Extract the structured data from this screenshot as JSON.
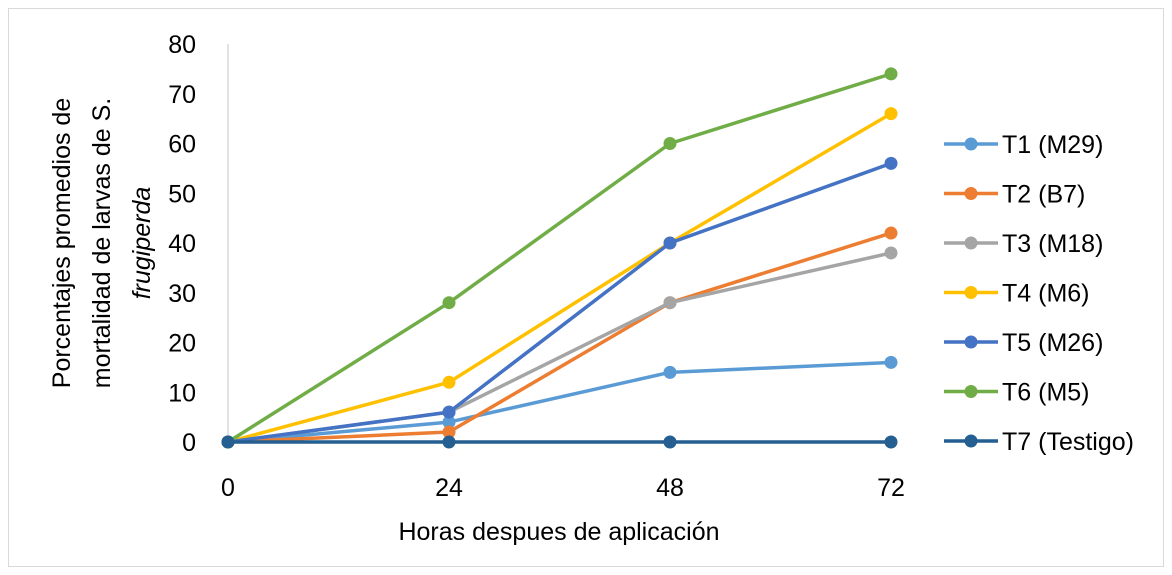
{
  "chart_data": {
    "type": "line",
    "x": [
      0,
      24,
      48,
      72
    ],
    "x_tick_labels": [
      "0",
      "24",
      "48",
      "72"
    ],
    "y_tick_labels": [
      "0",
      "10",
      "20",
      "30",
      "40",
      "50",
      "60",
      "70",
      "80"
    ],
    "ylim": [
      0,
      80
    ],
    "xlabel": "Horas despues de aplicación",
    "ylabel_lines": [
      "Porcentajes promedios de",
      "mortalidad de larvas de S.",
      "frugiperda"
    ],
    "ylabel": "Porcentajes promedios de mortalidad de larvas de S. frugiperda",
    "grid": false,
    "legend_position": "right",
    "series": [
      {
        "name": "T1 (M29)",
        "color": "#5B9BD5",
        "values": [
          0,
          4,
          14,
          16
        ]
      },
      {
        "name": "T2 (B7)",
        "color": "#ED7D31",
        "values": [
          0,
          2,
          28,
          42
        ]
      },
      {
        "name": "T3 (M18)",
        "color": "#A5A5A5",
        "values": [
          0,
          6,
          28,
          38
        ]
      },
      {
        "name": "T4 (M6)",
        "color": "#FFC000",
        "values": [
          0,
          12,
          40,
          66
        ]
      },
      {
        "name": "T5 (M26)",
        "color": "#4472C4",
        "values": [
          0,
          6,
          40,
          56
        ]
      },
      {
        "name": "T6 (M5)",
        "color": "#70AD47",
        "values": [
          0,
          28,
          60,
          74
        ]
      },
      {
        "name": "T7 (Testigo)",
        "color": "#255E91",
        "values": [
          0,
          0,
          0,
          0
        ]
      }
    ]
  }
}
